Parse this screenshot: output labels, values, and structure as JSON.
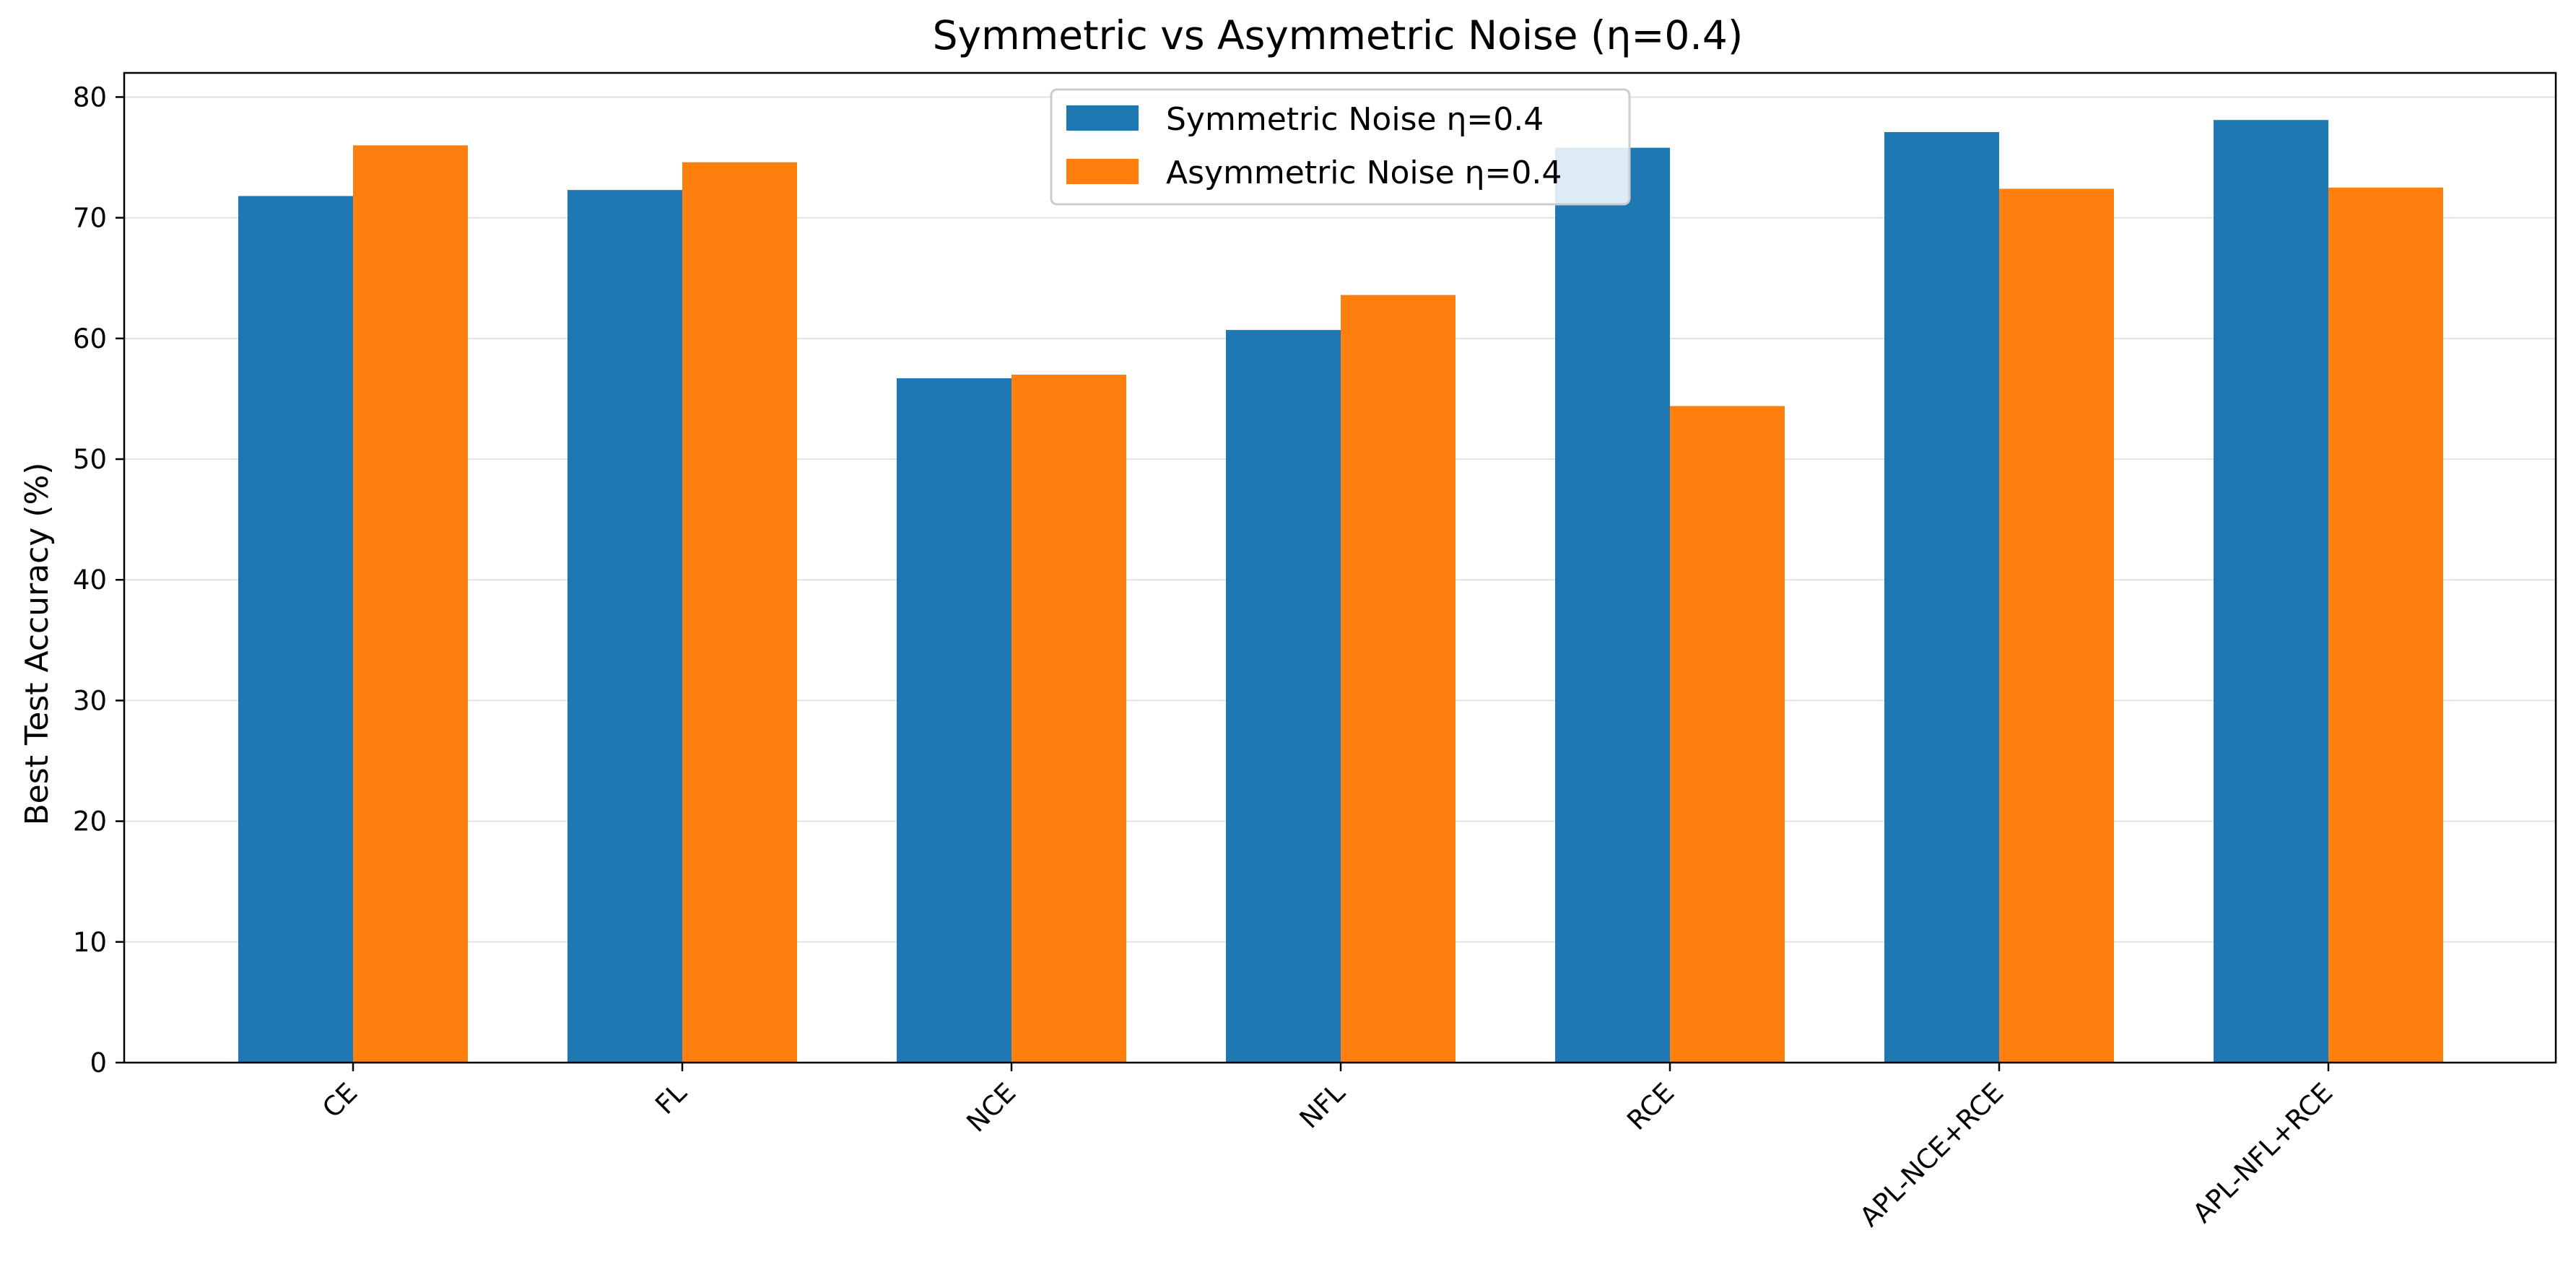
{
  "chart_data": {
    "type": "bar",
    "title": "Symmetric vs Asymmetric Noise (η=0.4)",
    "xlabel": "",
    "ylabel": "Best Test Accuracy (%)",
    "categories": [
      "CE",
      "FL",
      "NCE",
      "NFL",
      "RCE",
      "APL-NCE+RCE",
      "APL-NFL+RCE"
    ],
    "series": [
      {
        "name": "Symmetric Noise η=0.4",
        "color": "#1f77b4",
        "values": [
          71.8,
          72.3,
          56.7,
          60.7,
          75.8,
          77.1,
          78.1
        ]
      },
      {
        "name": "Asymmetric Noise η=0.4",
        "color": "#ff7f0e",
        "values": [
          76.0,
          74.6,
          57.0,
          63.6,
          54.4,
          72.4,
          72.5
        ]
      }
    ],
    "ylim": [
      0,
      82
    ],
    "yticks": [
      0,
      10,
      20,
      30,
      40,
      50,
      60,
      70,
      80
    ],
    "grid": "horizontal",
    "legend_position": "top-center"
  }
}
